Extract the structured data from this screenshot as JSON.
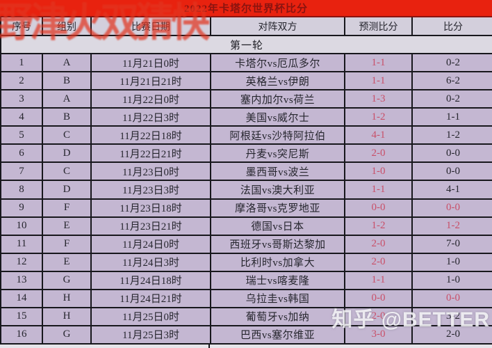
{
  "chart_data": {
    "type": "table",
    "title": "2022年卡塔尔世界杯比分",
    "columns": [
      "序号",
      "组别",
      "比赛日期",
      "对阵双方",
      "预测比分",
      "比分"
    ],
    "section": "第一轮",
    "rows": [
      {
        "no": "1",
        "group": "A",
        "date": "11月21日0时",
        "teams": "卡塔尔vs厄瓜多尔",
        "predicted": "1-1",
        "actual": "0-2",
        "hit": false
      },
      {
        "no": "2",
        "group": "B",
        "date": "11月21日21时",
        "teams": "英格兰vs伊朗",
        "predicted": "1-1",
        "actual": "6-2",
        "hit": false
      },
      {
        "no": "3",
        "group": "A",
        "date": "11月22日0时",
        "teams": "塞内加尔vs荷兰",
        "predicted": "1-3",
        "actual": "0-2",
        "hit": false
      },
      {
        "no": "4",
        "group": "B",
        "date": "11月22日3时",
        "teams": "美国vs威尔士",
        "predicted": "1-2",
        "actual": "1-1",
        "hit": false
      },
      {
        "no": "5",
        "group": "C",
        "date": "11月22日18时",
        "teams": "阿根廷vs沙特阿拉伯",
        "predicted": "4-1",
        "actual": "1-2",
        "hit": false
      },
      {
        "no": "6",
        "group": "D",
        "date": "11月22日21时",
        "teams": "丹麦vs突尼斯",
        "predicted": "2-0",
        "actual": "0-0",
        "hit": false
      },
      {
        "no": "7",
        "group": "C",
        "date": "11月23日0时",
        "teams": "墨西哥vs波兰",
        "predicted": "1-0",
        "actual": "0-0",
        "hit": false
      },
      {
        "no": "8",
        "group": "D",
        "date": "11月23日3时",
        "teams": "法国vs澳大利亚",
        "predicted": "1-1",
        "actual": "4-1",
        "hit": false
      },
      {
        "no": "9",
        "group": "F",
        "date": "11月23日18时",
        "teams": "摩洛哥vs克罗地亚",
        "predicted": "0-0",
        "actual": "0-0",
        "hit": true
      },
      {
        "no": "10",
        "group": "E",
        "date": "11月23日21时",
        "teams": "德国vs日本",
        "predicted": "1-2",
        "actual": "1-2",
        "hit": true
      },
      {
        "no": "11",
        "group": "F",
        "date": "11月24日0时",
        "teams": "西班牙vs哥斯达黎加",
        "predicted": "2-0",
        "actual": "7-0",
        "hit": false
      },
      {
        "no": "12",
        "group": "E",
        "date": "11月24日3时",
        "teams": "比利时vs加拿大",
        "predicted": "2-0",
        "actual": "1-0",
        "hit": false
      },
      {
        "no": "13",
        "group": "G",
        "date": "11月24日18时",
        "teams": "瑞士vs喀麦隆",
        "predicted": "1-1",
        "actual": "1-0",
        "hit": false
      },
      {
        "no": "14",
        "group": "H",
        "date": "11月24日21时",
        "teams": "乌拉圭vs韩国",
        "predicted": "0-0",
        "actual": "0-0",
        "hit": true
      },
      {
        "no": "15",
        "group": "H",
        "date": "11月25日0时",
        "teams": "葡萄牙vs加纳",
        "predicted": "2-0",
        "actual": "3-2",
        "hit": false
      },
      {
        "no": "16",
        "group": "G",
        "date": "11月25日3时",
        "teams": "巴西vs塞尔维亚",
        "predicted": "3-0",
        "actual": "2-0",
        "hit": false
      }
    ]
  },
  "watermarks": {
    "red_overlay": "野津火双猜快",
    "zhihu": "知乎 @BETTER"
  },
  "colors": {
    "title_bg": "#e8220f",
    "title_text": "#8a1410",
    "header_bg": "#d3cfdc",
    "section_bg": "#dcd9e2",
    "row_bg": "#c4b7d2",
    "score_red": "#c94f68",
    "border": "#17171c",
    "red_watermark": "#e23520"
  }
}
